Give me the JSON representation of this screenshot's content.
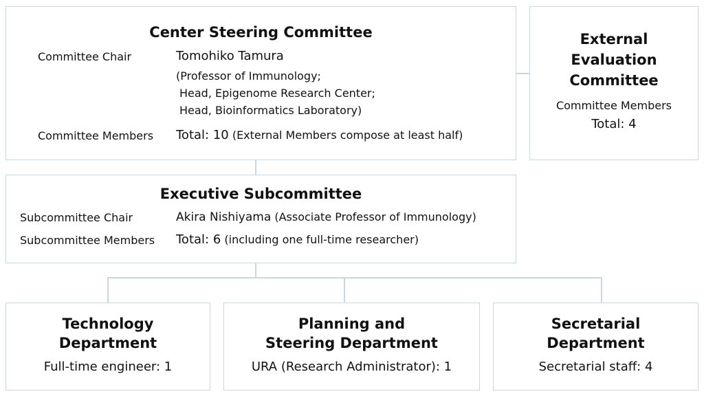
{
  "steering": {
    "title": "Center Steering Committee",
    "chair_label": "Committee Chair",
    "chair_name": "Tomohiko Tamura",
    "chair_roles": [
      "(Professor of Immunology;",
      "Head, Epigenome Research Center;",
      "Head, Bioinformatics Laboratory)"
    ],
    "members_label": "Committee Members",
    "members_total": "Total: 10",
    "members_note": "(External Members compose at least half)"
  },
  "external": {
    "title_lines": [
      "External",
      "Evaluation",
      "Committee"
    ],
    "members_label": "Committee Members",
    "members_total": "Total: 4"
  },
  "executive": {
    "title": "Executive Subcommittee",
    "chair_label": "Subcommittee Chair",
    "chair_name": "Akira Nishiyama",
    "chair_role": "(Associate Professor of Immunology)",
    "members_label": "Subcommittee Members",
    "members_total": "Total: 6",
    "members_note": "(including one full-time researcher)"
  },
  "departments": [
    {
      "title_lines": [
        "Technology",
        "Department"
      ],
      "staff": "Full-time engineer: 1"
    },
    {
      "title_lines": [
        "Planning and",
        "Steering Department"
      ],
      "staff": "URA (Research Administrator): 1"
    },
    {
      "title_lines": [
        "Secretarial",
        "Department"
      ],
      "staff": "Secretarial staff: 4"
    }
  ]
}
